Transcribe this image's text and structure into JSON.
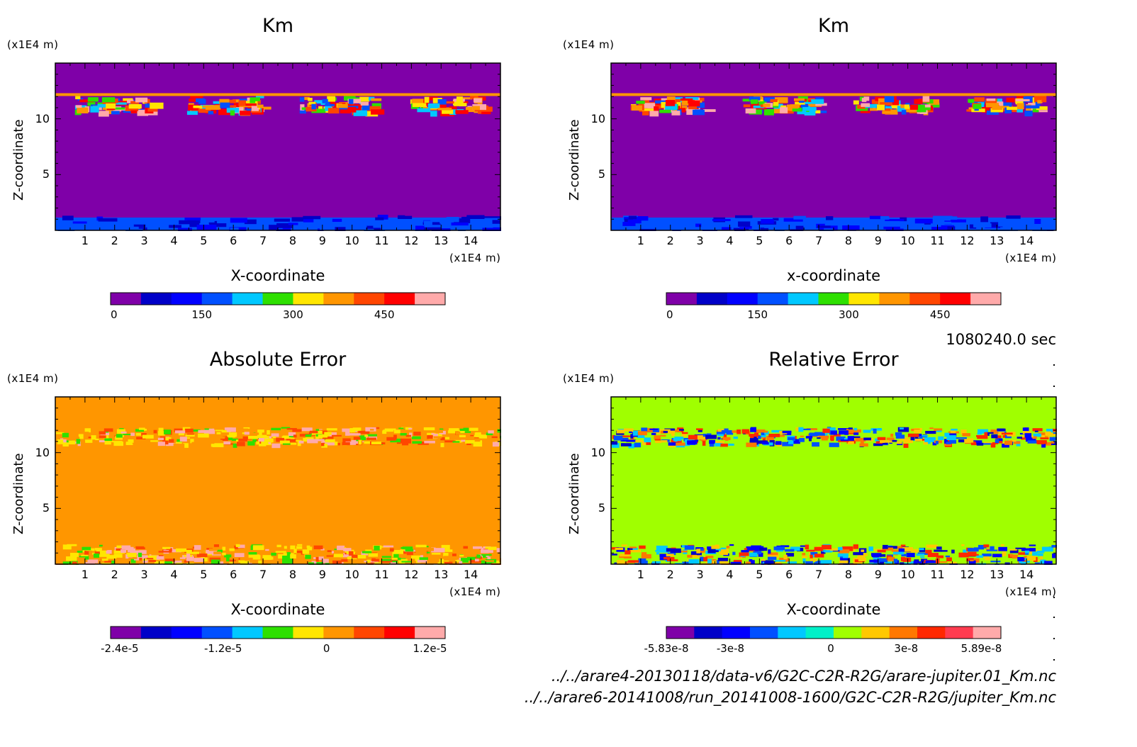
{
  "time_label": "1080240.0 sec",
  "files": [
    "../../arare4-20130118/data-v6/G2C-C2R-R2G/arare-jupiter.01_Km.nc",
    "../../arare6-20141008/run_20141008-1600/G2C-C2R-R2G/jupiter_Km.nc"
  ],
  "chart_data": [
    {
      "type": "heatmap",
      "title": "Km",
      "xlabel": "X-coordinate",
      "ylabel": "Z-coordinate",
      "x_unit": "(x1E4 m)",
      "y_unit": "(x1E4 m)",
      "xlim": [
        0,
        15
      ],
      "ylim": [
        0,
        15
      ],
      "xticks": [
        1,
        2,
        3,
        4,
        5,
        6,
        7,
        8,
        9,
        10,
        11,
        12,
        13,
        14
      ],
      "yticks": [
        5,
        10
      ],
      "background_color": "#7F00A8",
      "colorbar": {
        "colors": [
          "#7F00A8",
          "#0000C8",
          "#0000FF",
          "#0050FF",
          "#00C8FF",
          "#2EE000",
          "#FFE600",
          "#FF9600",
          "#FF4600",
          "#FF0000",
          "#FFAAAA"
        ],
        "ticks": [
          "0",
          "150",
          "300",
          "450"
        ]
      }
    },
    {
      "type": "heatmap",
      "title": "Km",
      "xlabel": "x-coordinate",
      "ylabel": "Z-coordinate",
      "x_unit": "(x1E4 m)",
      "y_unit": "(x1E4 m)",
      "xlim": [
        0,
        15
      ],
      "ylim": [
        0,
        15
      ],
      "xticks": [
        1,
        2,
        3,
        4,
        5,
        6,
        7,
        8,
        9,
        10,
        11,
        12,
        13,
        14
      ],
      "yticks": [
        5,
        10
      ],
      "background_color": "#7F00A8",
      "colorbar": {
        "colors": [
          "#7F00A8",
          "#0000C8",
          "#0000FF",
          "#0050FF",
          "#00C8FF",
          "#2EE000",
          "#FFE600",
          "#FF9600",
          "#FF4600",
          "#FF0000",
          "#FFAAAA"
        ],
        "ticks": [
          "0",
          "150",
          "300",
          "450"
        ]
      }
    },
    {
      "type": "heatmap",
      "title": "Absolute Error",
      "xlabel": "X-coordinate",
      "ylabel": "Z-coordinate",
      "x_unit": "(x1E4 m)",
      "y_unit": "(x1E4 m)",
      "xlim": [
        0,
        15
      ],
      "ylim": [
        0,
        15
      ],
      "xticks": [
        1,
        2,
        3,
        4,
        5,
        6,
        7,
        8,
        9,
        10,
        11,
        12,
        13,
        14
      ],
      "yticks": [
        5,
        10
      ],
      "background_color": "#FF9600",
      "colorbar": {
        "colors": [
          "#7F00A8",
          "#0000C8",
          "#0000FF",
          "#0050FF",
          "#00C8FF",
          "#2EE000",
          "#FFE600",
          "#FF9600",
          "#FF4600",
          "#FF0000",
          "#FFAAAA"
        ],
        "ticks": [
          "-2.4e-5",
          "-1.2e-5",
          "0",
          "1.2e-5"
        ]
      }
    },
    {
      "type": "heatmap",
      "title": "Relative Error",
      "xlabel": "X-coordinate",
      "ylabel": "Z-coordinate",
      "x_unit": "(x1E4 m)",
      "y_unit": "(x1E4 m)",
      "xlim": [
        0,
        15
      ],
      "ylim": [
        0,
        15
      ],
      "xticks": [
        1,
        2,
        3,
        4,
        5,
        6,
        7,
        8,
        9,
        10,
        11,
        12,
        13,
        14
      ],
      "yticks": [
        5,
        10
      ],
      "background_color": "#A0FF00",
      "colorbar": {
        "colors": [
          "#7F00A8",
          "#0000C8",
          "#0000FF",
          "#0050FF",
          "#00C8FF",
          "#00F0C8",
          "#A0FF00",
          "#FFC800",
          "#FF7800",
          "#FF2800",
          "#FF3C50",
          "#FFAAAA"
        ],
        "ticks": [
          "-5.83e-8",
          "-3e-8",
          "0",
          "3e-8",
          "5.89e-8"
        ]
      }
    }
  ]
}
